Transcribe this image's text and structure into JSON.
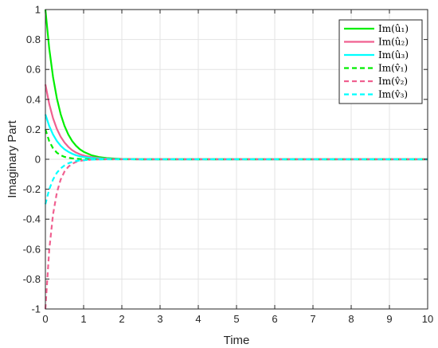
{
  "chart_data": {
    "type": "line",
    "title": "",
    "xlabel": "Time",
    "ylabel": "Imaginary Part",
    "xlim": [
      0,
      10
    ],
    "ylim": [
      -1,
      1
    ],
    "xticks": [
      0,
      1,
      2,
      3,
      4,
      5,
      6,
      7,
      8,
      9,
      10
    ],
    "yticks": [
      -1,
      -0.8,
      -0.6,
      -0.4,
      -0.2,
      0,
      0.2,
      0.4,
      0.6,
      0.8,
      1
    ],
    "ytick_labels": [
      "-1",
      "-0.8",
      "-0.6",
      "-0.4",
      "-0.2",
      "0",
      "0.2",
      "0.4",
      "0.6",
      "0.8",
      "1"
    ],
    "grid": true,
    "legend_position": "top-right",
    "x": [
      0,
      0.1,
      0.2,
      0.3,
      0.4,
      0.5,
      0.6,
      0.7,
      0.8,
      0.9,
      1.0,
      1.2,
      1.4,
      1.6,
      1.8,
      2.0,
      2.5,
      3,
      4,
      5,
      6,
      7,
      8,
      9,
      10
    ],
    "series": [
      {
        "name": "Im(û₁)",
        "color": "#00ee00",
        "style": "solid",
        "values": [
          1.0,
          0.741,
          0.549,
          0.407,
          0.301,
          0.223,
          0.165,
          0.122,
          0.091,
          0.067,
          0.05,
          0.027,
          0.015,
          0.008,
          0.005,
          0.002,
          0.0,
          0,
          0,
          0,
          0,
          0,
          0,
          0,
          0
        ]
      },
      {
        "name": "Im(û₂)",
        "color": "#f06090",
        "style": "solid",
        "values": [
          0.5,
          0.37,
          0.274,
          0.203,
          0.15,
          0.112,
          0.083,
          0.061,
          0.045,
          0.034,
          0.025,
          0.014,
          0.008,
          0.004,
          0.002,
          0.001,
          0.0,
          0,
          0,
          0,
          0,
          0,
          0,
          0,
          0
        ]
      },
      {
        "name": "Im(û₃)",
        "color": "#00ffff",
        "style": "solid",
        "values": [
          0.3,
          0.222,
          0.165,
          0.122,
          0.09,
          0.067,
          0.05,
          0.037,
          0.027,
          0.02,
          0.015,
          0.008,
          0.005,
          0.003,
          0.001,
          0.001,
          0.0,
          0,
          0,
          0,
          0,
          0,
          0,
          0,
          0
        ]
      },
      {
        "name": "Im(v̂₁)",
        "color": "#00ee00",
        "style": "dashed",
        "values": [
          0.2,
          0.121,
          0.073,
          0.044,
          0.027,
          0.016,
          0.01,
          0.006,
          0.004,
          0.002,
          0.001,
          0.0,
          0.0,
          0,
          0,
          0,
          0,
          0,
          0,
          0,
          0,
          0,
          0,
          0,
          0
        ]
      },
      {
        "name": "Im(v̂₂)",
        "color": "#f06090",
        "style": "dashed",
        "values": [
          -1.0,
          -0.607,
          -0.368,
          -0.223,
          -0.135,
          -0.082,
          -0.05,
          -0.03,
          -0.018,
          -0.011,
          -0.007,
          -0.002,
          -0.001,
          0.0,
          0,
          0,
          0,
          0,
          0,
          0,
          0,
          0,
          0,
          0,
          0
        ]
      },
      {
        "name": "Im(v̂₃)",
        "color": "#00ffff",
        "style": "dashed",
        "values": [
          -0.3,
          -0.201,
          -0.135,
          -0.09,
          -0.061,
          -0.041,
          -0.027,
          -0.018,
          -0.012,
          -0.008,
          -0.006,
          -0.002,
          -0.001,
          0.0,
          0,
          0,
          0,
          0,
          0,
          0,
          0,
          0,
          0,
          0,
          0
        ]
      }
    ]
  }
}
